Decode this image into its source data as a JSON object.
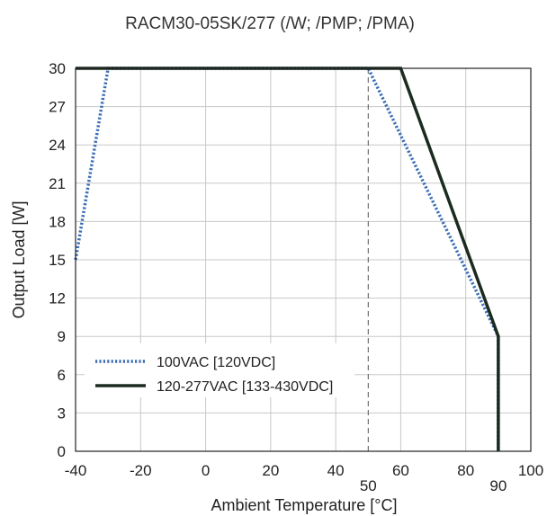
{
  "chart_data": {
    "type": "line",
    "title": "RACM30-05SK/277 (/W; /PMP; /PMA)",
    "xlabel": "Ambient Temperature [°C]",
    "ylabel": "Output Load [W]",
    "xlim": [
      -40,
      100
    ],
    "ylim": [
      0,
      30
    ],
    "x_ticks": [
      -40,
      -20,
      0,
      20,
      40,
      60,
      80,
      100
    ],
    "x_tick_labels": [
      "-40",
      "-20",
      "0",
      "20",
      "40",
      "60",
      "80",
      "100"
    ],
    "x_marker_labels": [
      {
        "x": 50,
        "label": "50"
      },
      {
        "x": 90,
        "label": "90"
      }
    ],
    "y_ticks": [
      0,
      3,
      6,
      9,
      12,
      15,
      18,
      21,
      24,
      27,
      30
    ],
    "y_tick_labels": [
      "0",
      "3",
      "6",
      "9",
      "12",
      "15",
      "18",
      "21",
      "24",
      "27",
      "30"
    ],
    "grid": true,
    "legend_position": "lower-left",
    "reference_lines": [
      {
        "x": 50,
        "style": "dashed",
        "color": "#555555"
      }
    ],
    "series": [
      {
        "name": "100VAC [120VDC]",
        "style": "dotted",
        "color": "#3a6db5",
        "points": [
          [
            -40,
            15
          ],
          [
            -30,
            30
          ],
          [
            50,
            30
          ],
          [
            90,
            9
          ],
          [
            90,
            0
          ]
        ]
      },
      {
        "name": "120-277VAC [133-430VDC]",
        "style": "solid",
        "color": "#1b2b20",
        "points": [
          [
            -40,
            30
          ],
          [
            60,
            30
          ],
          [
            90,
            9
          ],
          [
            90,
            0
          ]
        ]
      }
    ]
  }
}
